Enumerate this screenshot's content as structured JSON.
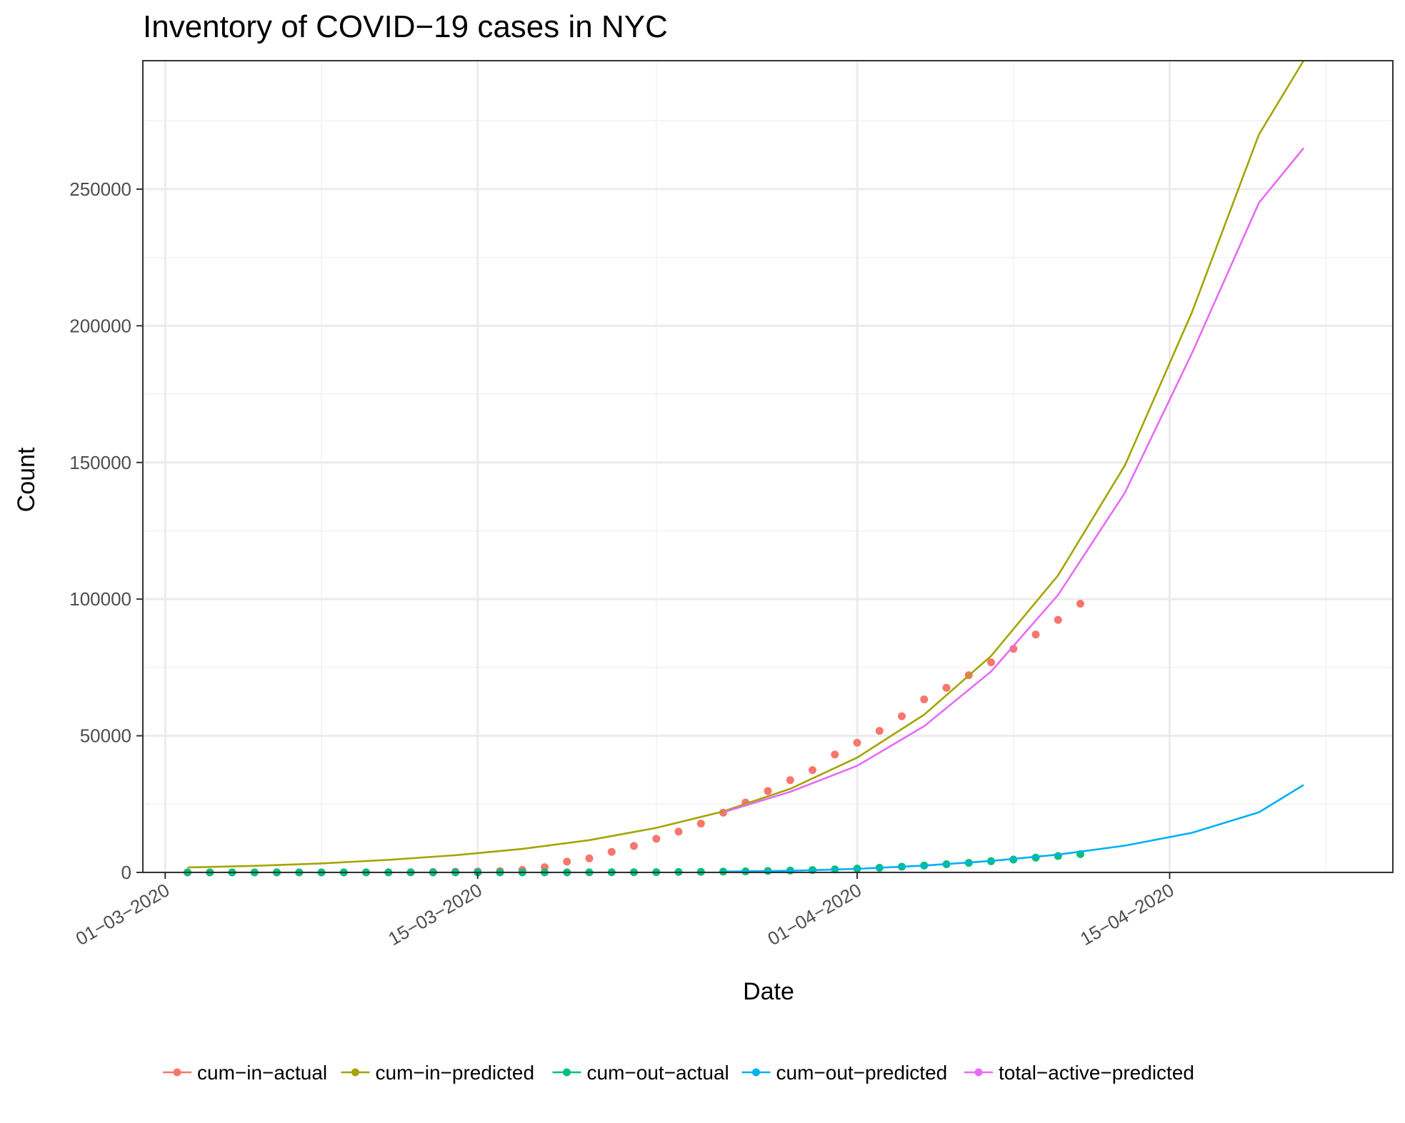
{
  "chart_data": {
    "type": "line",
    "title": "Inventory of COVID−19 cases in NYC",
    "xlabel": "Date",
    "ylabel": "Count",
    "x_axis": {
      "start_date": "2020-02-29",
      "end_date": "2020-04-25",
      "ticks": [
        {
          "date": "2020-03-01",
          "label": "01−03−2020"
        },
        {
          "date": "2020-03-15",
          "label": "15−03−2020"
        },
        {
          "date": "2020-04-01",
          "label": "01−04−2020"
        },
        {
          "date": "2020-04-15",
          "label": "15−04−2020"
        }
      ],
      "minor_grid_dates": [
        "2020-03-08",
        "2020-03-23",
        "2020-04-08",
        "2020-04-22"
      ]
    },
    "y_axis": {
      "ylim": [
        0,
        297000
      ],
      "ticks": [
        0,
        50000,
        100000,
        150000,
        200000,
        250000
      ],
      "tick_labels": [
        "0",
        "50000",
        "100000",
        "150000",
        "200000",
        "250000"
      ]
    },
    "grid": true,
    "legend_position": "bottom",
    "series": [
      {
        "name": "cum−in−actual",
        "kind": "points",
        "color": "#F8766D",
        "points": [
          [
            "2020-03-02",
            1
          ],
          [
            "2020-03-03",
            1
          ],
          [
            "2020-03-04",
            2
          ],
          [
            "2020-03-05",
            4
          ],
          [
            "2020-03-06",
            5
          ],
          [
            "2020-03-07",
            12
          ],
          [
            "2020-03-08",
            13
          ],
          [
            "2020-03-09",
            19
          ],
          [
            "2020-03-10",
            36
          ],
          [
            "2020-03-11",
            52
          ],
          [
            "2020-03-12",
            95
          ],
          [
            "2020-03-13",
            154
          ],
          [
            "2020-03-14",
            269
          ],
          [
            "2020-03-15",
            329
          ],
          [
            "2020-03-16",
            463
          ],
          [
            "2020-03-17",
            923
          ],
          [
            "2020-03-18",
            1871
          ],
          [
            "2020-03-19",
            3954
          ],
          [
            "2020-03-20",
            5151
          ],
          [
            "2020-03-21",
            7530
          ],
          [
            "2020-03-22",
            9654
          ],
          [
            "2020-03-23",
            12305
          ],
          [
            "2020-03-24",
            14904
          ],
          [
            "2020-03-25",
            17856
          ],
          [
            "2020-03-26",
            21873
          ],
          [
            "2020-03-27",
            25573
          ],
          [
            "2020-03-28",
            29766
          ],
          [
            "2020-03-29",
            33768
          ],
          [
            "2020-03-30",
            37453
          ],
          [
            "2020-03-31",
            43119
          ],
          [
            "2020-04-01",
            47439
          ],
          [
            "2020-04-02",
            51809
          ],
          [
            "2020-04-03",
            57159
          ],
          [
            "2020-04-04",
            63306
          ],
          [
            "2020-04-05",
            67551
          ],
          [
            "2020-04-06",
            72181
          ],
          [
            "2020-04-07",
            76876
          ],
          [
            "2020-04-08",
            81803
          ],
          [
            "2020-04-09",
            87028
          ],
          [
            "2020-04-10",
            92384
          ],
          [
            "2020-04-11",
            98308
          ]
        ]
      },
      {
        "name": "cum−in−predicted",
        "kind": "line",
        "color": "#A3A500",
        "points": [
          [
            "2020-03-02",
            1800
          ],
          [
            "2020-03-05",
            2400
          ],
          [
            "2020-03-08",
            3300
          ],
          [
            "2020-03-11",
            4600
          ],
          [
            "2020-03-14",
            6300
          ],
          [
            "2020-03-17",
            8600
          ],
          [
            "2020-03-20",
            11800
          ],
          [
            "2020-03-23",
            16300
          ],
          [
            "2020-03-26",
            22300
          ],
          [
            "2020-03-29",
            30600
          ],
          [
            "2020-04-01",
            42000
          ],
          [
            "2020-04-04",
            57700
          ],
          [
            "2020-04-07",
            79200
          ],
          [
            "2020-04-10",
            108700
          ],
          [
            "2020-04-13",
            149000
          ],
          [
            "2020-04-16",
            205000
          ],
          [
            "2020-04-19",
            270000
          ],
          [
            "2020-04-21",
            297000
          ]
        ]
      },
      {
        "name": "cum−out−actual",
        "kind": "points",
        "color": "#00BF7D",
        "points": [
          [
            "2020-03-02",
            0
          ],
          [
            "2020-03-03",
            0
          ],
          [
            "2020-03-04",
            0
          ],
          [
            "2020-03-05",
            0
          ],
          [
            "2020-03-06",
            0
          ],
          [
            "2020-03-07",
            0
          ],
          [
            "2020-03-08",
            0
          ],
          [
            "2020-03-09",
            0
          ],
          [
            "2020-03-10",
            0
          ],
          [
            "2020-03-11",
            0
          ],
          [
            "2020-03-12",
            0
          ],
          [
            "2020-03-13",
            0
          ],
          [
            "2020-03-14",
            0
          ],
          [
            "2020-03-15",
            0
          ],
          [
            "2020-03-16",
            0
          ],
          [
            "2020-03-17",
            0
          ],
          [
            "2020-03-18",
            0
          ],
          [
            "2020-03-19",
            10
          ],
          [
            "2020-03-20",
            20
          ],
          [
            "2020-03-21",
            40
          ],
          [
            "2020-03-22",
            60
          ],
          [
            "2020-03-23",
            100
          ],
          [
            "2020-03-24",
            150
          ],
          [
            "2020-03-25",
            210
          ],
          [
            "2020-03-26",
            280
          ],
          [
            "2020-03-27",
            380
          ],
          [
            "2020-03-28",
            520
          ],
          [
            "2020-03-29",
            680
          ],
          [
            "2020-03-30",
            850
          ],
          [
            "2020-03-31",
            1100
          ],
          [
            "2020-04-01",
            1400
          ],
          [
            "2020-04-02",
            1700
          ],
          [
            "2020-04-03",
            2100
          ],
          [
            "2020-04-04",
            2500
          ],
          [
            "2020-04-05",
            3000
          ],
          [
            "2020-04-06",
            3500
          ],
          [
            "2020-04-07",
            4100
          ],
          [
            "2020-04-08",
            4700
          ],
          [
            "2020-04-09",
            5400
          ],
          [
            "2020-04-10",
            6000
          ],
          [
            "2020-04-11",
            6700
          ]
        ]
      },
      {
        "name": "cum−out−predicted",
        "kind": "line",
        "color": "#00B0F6",
        "points": [
          [
            "2020-03-26",
            300
          ],
          [
            "2020-03-29",
            600
          ],
          [
            "2020-04-01",
            1300
          ],
          [
            "2020-04-04",
            2500
          ],
          [
            "2020-04-07",
            4200
          ],
          [
            "2020-04-10",
            6500
          ],
          [
            "2020-04-13",
            9800
          ],
          [
            "2020-04-16",
            14500
          ],
          [
            "2020-04-19",
            22000
          ],
          [
            "2020-04-21",
            32000
          ]
        ]
      },
      {
        "name": "total−active−predicted",
        "kind": "line",
        "color": "#E76BF3",
        "points": [
          [
            "2020-03-26",
            22000
          ],
          [
            "2020-03-29",
            29500
          ],
          [
            "2020-04-01",
            39000
          ],
          [
            "2020-04-04",
            53500
          ],
          [
            "2020-04-07",
            73500
          ],
          [
            "2020-04-10",
            101500
          ],
          [
            "2020-04-13",
            139000
          ],
          [
            "2020-04-16",
            190000
          ],
          [
            "2020-04-19",
            245000
          ],
          [
            "2020-04-21",
            265000
          ]
        ]
      }
    ]
  }
}
